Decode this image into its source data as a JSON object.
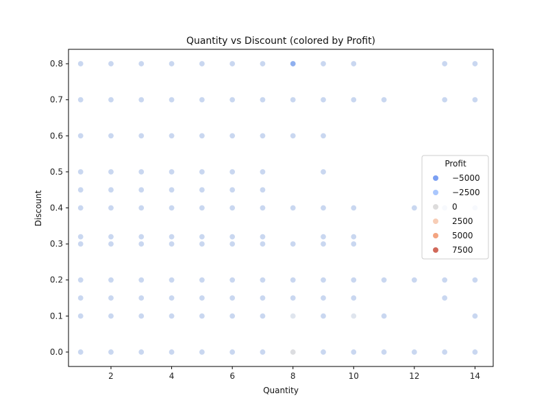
{
  "chart_data": {
    "type": "scatter",
    "title": "Quantity vs Discount (colored by Profit)",
    "xlabel": "Quantity",
    "ylabel": "Discount",
    "xlim": [
      0.6,
      14.6
    ],
    "ylim": [
      -0.04,
      0.84
    ],
    "xticks": [
      2,
      4,
      6,
      8,
      10,
      12,
      14
    ],
    "yticks": [
      0.0,
      0.1,
      0.2,
      0.3,
      0.4,
      0.5,
      0.6,
      0.7,
      0.8
    ],
    "legend": {
      "title": "Profit",
      "position": "center-right",
      "entries": [
        {
          "label": "−5000",
          "color": "#7b9ff2"
        },
        {
          "label": "−2500",
          "color": "#aac7fd"
        },
        {
          "label": "0",
          "color": "#dddcdc"
        },
        {
          "label": "2500",
          "color": "#f7cdb6"
        },
        {
          "label": "5000",
          "color": "#f3a481"
        },
        {
          "label": "7500",
          "color": "#d1695a"
        }
      ]
    },
    "default_point_color": "#c9d7f0",
    "points": [
      {
        "x": 1,
        "y": 0.8
      },
      {
        "x": 2,
        "y": 0.8
      },
      {
        "x": 3,
        "y": 0.8
      },
      {
        "x": 4,
        "y": 0.8
      },
      {
        "x": 5,
        "y": 0.8
      },
      {
        "x": 6,
        "y": 0.8
      },
      {
        "x": 7,
        "y": 0.8
      },
      {
        "x": 8,
        "y": 0.8,
        "color": "#8fb0ef"
      },
      {
        "x": 9,
        "y": 0.8
      },
      {
        "x": 10,
        "y": 0.8
      },
      {
        "x": 13,
        "y": 0.8
      },
      {
        "x": 14,
        "y": 0.8
      },
      {
        "x": 1,
        "y": 0.7
      },
      {
        "x": 2,
        "y": 0.7
      },
      {
        "x": 3,
        "y": 0.7
      },
      {
        "x": 4,
        "y": 0.7
      },
      {
        "x": 5,
        "y": 0.7
      },
      {
        "x": 6,
        "y": 0.7
      },
      {
        "x": 7,
        "y": 0.7
      },
      {
        "x": 8,
        "y": 0.7
      },
      {
        "x": 9,
        "y": 0.7
      },
      {
        "x": 10,
        "y": 0.7
      },
      {
        "x": 11,
        "y": 0.7
      },
      {
        "x": 13,
        "y": 0.7
      },
      {
        "x": 14,
        "y": 0.7
      },
      {
        "x": 1,
        "y": 0.6
      },
      {
        "x": 2,
        "y": 0.6
      },
      {
        "x": 3,
        "y": 0.6
      },
      {
        "x": 4,
        "y": 0.6
      },
      {
        "x": 5,
        "y": 0.6
      },
      {
        "x": 6,
        "y": 0.6
      },
      {
        "x": 7,
        "y": 0.6
      },
      {
        "x": 8,
        "y": 0.6
      },
      {
        "x": 9,
        "y": 0.6
      },
      {
        "x": 1,
        "y": 0.5
      },
      {
        "x": 2,
        "y": 0.5
      },
      {
        "x": 3,
        "y": 0.5
      },
      {
        "x": 4,
        "y": 0.5
      },
      {
        "x": 5,
        "y": 0.5
      },
      {
        "x": 6,
        "y": 0.5
      },
      {
        "x": 7,
        "y": 0.5
      },
      {
        "x": 9,
        "y": 0.5
      },
      {
        "x": 1,
        "y": 0.45
      },
      {
        "x": 2,
        "y": 0.45
      },
      {
        "x": 3,
        "y": 0.45
      },
      {
        "x": 4,
        "y": 0.45
      },
      {
        "x": 5,
        "y": 0.45
      },
      {
        "x": 6,
        "y": 0.45
      },
      {
        "x": 7,
        "y": 0.45
      },
      {
        "x": 1,
        "y": 0.4
      },
      {
        "x": 2,
        "y": 0.4
      },
      {
        "x": 3,
        "y": 0.4
      },
      {
        "x": 4,
        "y": 0.4
      },
      {
        "x": 5,
        "y": 0.4
      },
      {
        "x": 6,
        "y": 0.4
      },
      {
        "x": 7,
        "y": 0.4
      },
      {
        "x": 8,
        "y": 0.4
      },
      {
        "x": 9,
        "y": 0.4
      },
      {
        "x": 10,
        "y": 0.4
      },
      {
        "x": 12,
        "y": 0.4
      },
      {
        "x": 13,
        "y": 0.4
      },
      {
        "x": 14,
        "y": 0.4
      },
      {
        "x": 1,
        "y": 0.32
      },
      {
        "x": 2,
        "y": 0.32
      },
      {
        "x": 3,
        "y": 0.32
      },
      {
        "x": 4,
        "y": 0.32
      },
      {
        "x": 5,
        "y": 0.32
      },
      {
        "x": 6,
        "y": 0.32
      },
      {
        "x": 7,
        "y": 0.32
      },
      {
        "x": 9,
        "y": 0.32
      },
      {
        "x": 10,
        "y": 0.32
      },
      {
        "x": 1,
        "y": 0.3
      },
      {
        "x": 2,
        "y": 0.3
      },
      {
        "x": 3,
        "y": 0.3
      },
      {
        "x": 4,
        "y": 0.3
      },
      {
        "x": 5,
        "y": 0.3
      },
      {
        "x": 6,
        "y": 0.3
      },
      {
        "x": 7,
        "y": 0.3
      },
      {
        "x": 8,
        "y": 0.3
      },
      {
        "x": 9,
        "y": 0.3
      },
      {
        "x": 10,
        "y": 0.3
      },
      {
        "x": 1,
        "y": 0.2
      },
      {
        "x": 2,
        "y": 0.2
      },
      {
        "x": 3,
        "y": 0.2
      },
      {
        "x": 4,
        "y": 0.2
      },
      {
        "x": 5,
        "y": 0.2
      },
      {
        "x": 6,
        "y": 0.2
      },
      {
        "x": 7,
        "y": 0.2
      },
      {
        "x": 8,
        "y": 0.2
      },
      {
        "x": 9,
        "y": 0.2
      },
      {
        "x": 10,
        "y": 0.2
      },
      {
        "x": 11,
        "y": 0.2
      },
      {
        "x": 12,
        "y": 0.2
      },
      {
        "x": 13,
        "y": 0.2
      },
      {
        "x": 14,
        "y": 0.2
      },
      {
        "x": 1,
        "y": 0.15
      },
      {
        "x": 2,
        "y": 0.15
      },
      {
        "x": 3,
        "y": 0.15
      },
      {
        "x": 4,
        "y": 0.15
      },
      {
        "x": 5,
        "y": 0.15
      },
      {
        "x": 6,
        "y": 0.15
      },
      {
        "x": 7,
        "y": 0.15
      },
      {
        "x": 8,
        "y": 0.15
      },
      {
        "x": 9,
        "y": 0.15
      },
      {
        "x": 10,
        "y": 0.15
      },
      {
        "x": 13,
        "y": 0.15
      },
      {
        "x": 1,
        "y": 0.1
      },
      {
        "x": 2,
        "y": 0.1
      },
      {
        "x": 3,
        "y": 0.1
      },
      {
        "x": 4,
        "y": 0.1
      },
      {
        "x": 5,
        "y": 0.1
      },
      {
        "x": 6,
        "y": 0.1
      },
      {
        "x": 7,
        "y": 0.1
      },
      {
        "x": 8,
        "y": 0.1,
        "color": "#dfe5ee"
      },
      {
        "x": 9,
        "y": 0.1
      },
      {
        "x": 10,
        "y": 0.1,
        "color": "#dfe5ee"
      },
      {
        "x": 11,
        "y": 0.1
      },
      {
        "x": 14,
        "y": 0.1
      },
      {
        "x": 1,
        "y": 0.0
      },
      {
        "x": 2,
        "y": 0.0
      },
      {
        "x": 3,
        "y": 0.0
      },
      {
        "x": 4,
        "y": 0.0
      },
      {
        "x": 5,
        "y": 0.0
      },
      {
        "x": 6,
        "y": 0.0
      },
      {
        "x": 7,
        "y": 0.0
      },
      {
        "x": 8,
        "y": 0.0,
        "color": "#dcdde0"
      },
      {
        "x": 9,
        "y": 0.0
      },
      {
        "x": 10,
        "y": 0.0
      },
      {
        "x": 11,
        "y": 0.0
      },
      {
        "x": 12,
        "y": 0.0
      },
      {
        "x": 13,
        "y": 0.0
      },
      {
        "x": 14,
        "y": 0.0
      }
    ]
  }
}
